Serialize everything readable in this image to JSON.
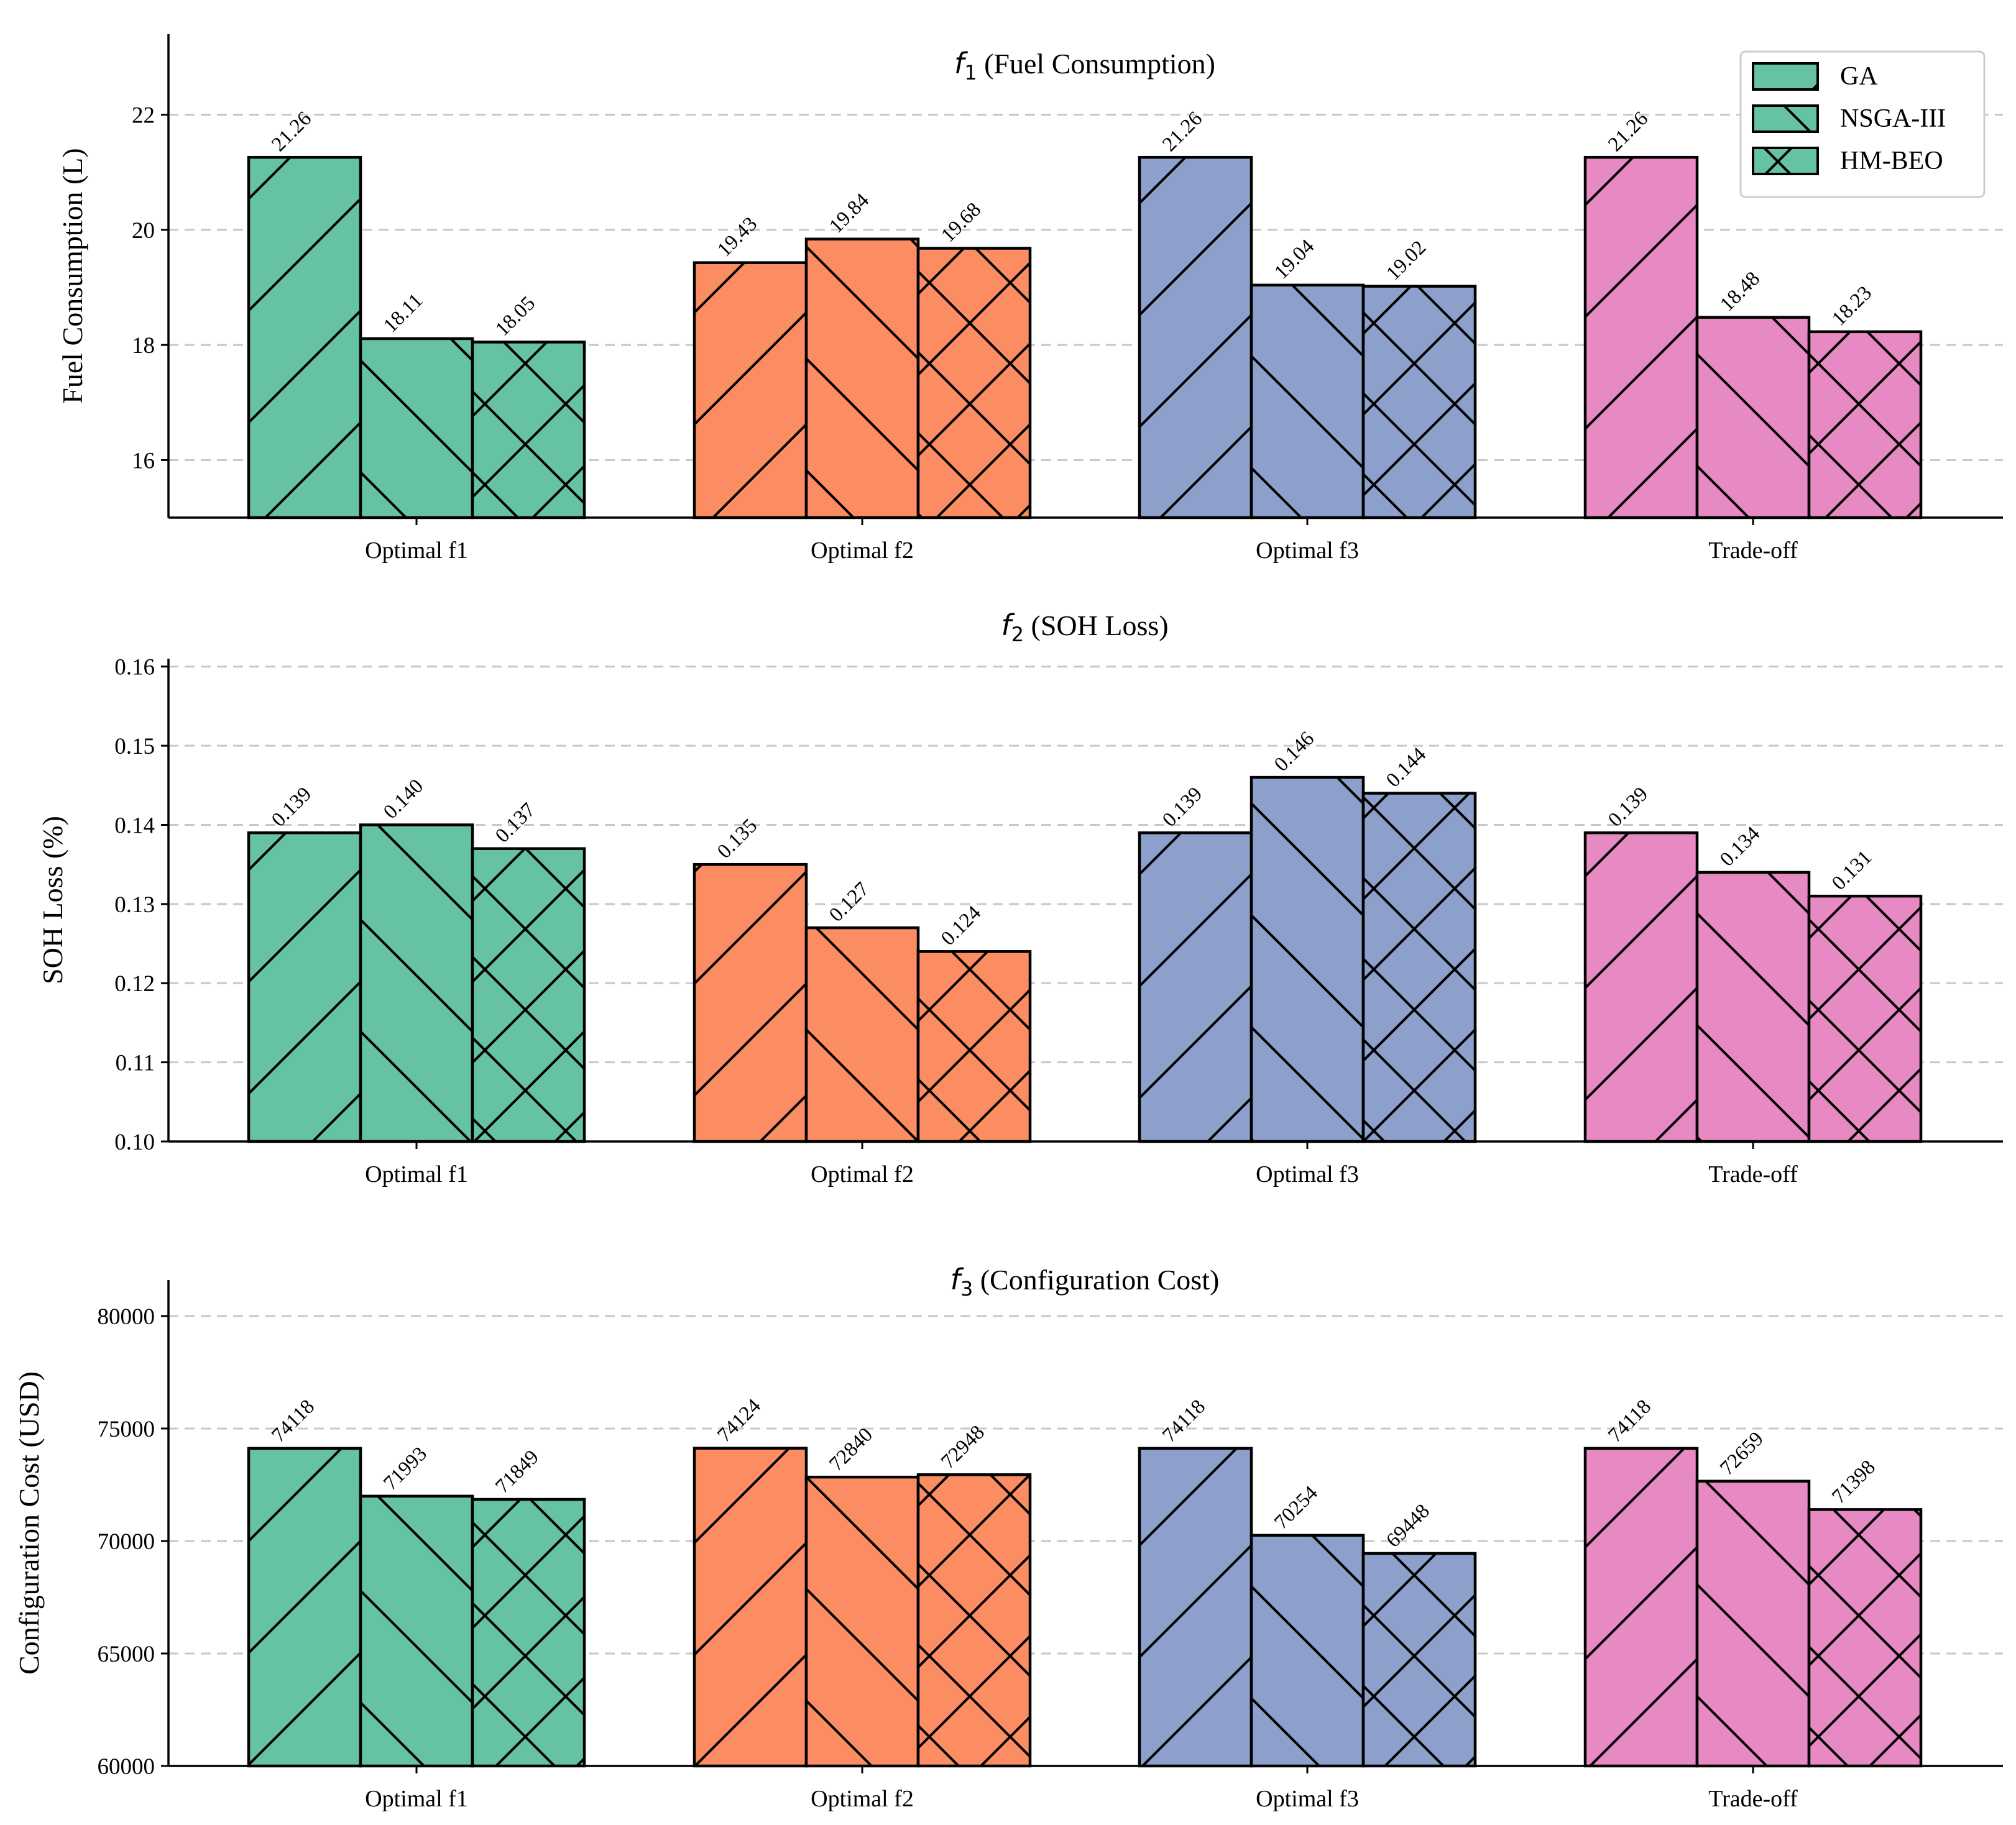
{
  "chart_data": [
    {
      "type": "bar",
      "title_symbol": "f",
      "title_sub": "1",
      "title": " (Fuel Consumption)",
      "ylabel": "Fuel Consumption (L)",
      "xlabel": "",
      "categories": [
        "Optimal f1",
        "Optimal f2",
        "Optimal f3",
        "Trade-off"
      ],
      "series": [
        {
          "name": "GA",
          "values": [
            21.26,
            19.43,
            21.26,
            21.26
          ],
          "labels": [
            "21.26",
            "19.43",
            "21.26",
            "21.26"
          ]
        },
        {
          "name": "NSGA-III",
          "values": [
            18.11,
            19.84,
            19.04,
            18.48
          ],
          "labels": [
            "18.11",
            "19.84",
            "19.04",
            "18.48"
          ]
        },
        {
          "name": "HM-BEO",
          "values": [
            18.05,
            19.68,
            19.02,
            18.23
          ],
          "labels": [
            "18.05",
            "19.68",
            "19.02",
            "18.23"
          ]
        }
      ],
      "ylim": [
        15,
        23.4
      ],
      "yticks": [
        16,
        18,
        20,
        22
      ],
      "ytick_labels": [
        "16",
        "18",
        "20",
        "22"
      ],
      "grid": true,
      "legend": "top-right"
    },
    {
      "type": "bar",
      "title_symbol": "f",
      "title_sub": "2",
      "title": " (SOH Loss)",
      "ylabel": "SOH Loss (%)",
      "xlabel": "",
      "categories": [
        "Optimal f1",
        "Optimal f2",
        "Optimal f3",
        "Trade-off"
      ],
      "series": [
        {
          "name": "GA",
          "values": [
            0.139,
            0.135,
            0.139,
            0.139
          ],
          "labels": [
            "0.139",
            "0.135",
            "0.139",
            "0.139"
          ]
        },
        {
          "name": "NSGA-III",
          "values": [
            0.14,
            0.127,
            0.146,
            0.134
          ],
          "labels": [
            "0.140",
            "0.127",
            "0.146",
            "0.134"
          ]
        },
        {
          "name": "HM-BEO",
          "values": [
            0.137,
            0.124,
            0.144,
            0.131
          ],
          "labels": [
            "0.137",
            "0.124",
            "0.144",
            "0.131"
          ]
        }
      ],
      "ylim": [
        0.1,
        0.161
      ],
      "yticks": [
        0.1,
        0.11,
        0.12,
        0.13,
        0.14,
        0.15,
        0.16
      ],
      "ytick_labels": [
        "0.10",
        "0.11",
        "0.12",
        "0.13",
        "0.14",
        "0.15",
        "0.16"
      ],
      "grid": true,
      "legend": "none"
    },
    {
      "type": "bar",
      "title_symbol": "f",
      "title_sub": "3",
      "title": " (Configuration Cost)",
      "ylabel": "Configuration Cost (USD)",
      "xlabel": "",
      "categories": [
        "Optimal f1",
        "Optimal f2",
        "Optimal f3",
        "Trade-off"
      ],
      "series": [
        {
          "name": "GA",
          "values": [
            74118,
            74124,
            74118,
            74118
          ],
          "labels": [
            "74118",
            "74124",
            "74118",
            "74118"
          ]
        },
        {
          "name": "NSGA-III",
          "values": [
            71993,
            72840,
            70254,
            72659
          ],
          "labels": [
            "71993",
            "72840",
            "70254",
            "72659"
          ]
        },
        {
          "name": "HM-BEO",
          "values": [
            71849,
            72948,
            69448,
            71398
          ],
          "labels": [
            "71849",
            "72948",
            "69448",
            "71398"
          ]
        }
      ],
      "ylim": [
        60000,
        81600
      ],
      "yticks": [
        60000,
        65000,
        70000,
        75000,
        80000
      ],
      "ytick_labels": [
        "60000",
        "65000",
        "70000",
        "75000",
        "80000"
      ],
      "grid": true,
      "legend": "none"
    }
  ],
  "legend": {
    "entries": [
      "GA",
      "NSGA-III",
      "HM-BEO"
    ],
    "hatches": [
      "forward-diagonal",
      "back-diagonal",
      "cross-diagonal"
    ]
  },
  "colors": {
    "categories": [
      "#66c2a5",
      "#fc8d62",
      "#8da0cb",
      "#e78ac3"
    ],
    "grid": "#c8c8c8",
    "edge": "#000000"
  }
}
